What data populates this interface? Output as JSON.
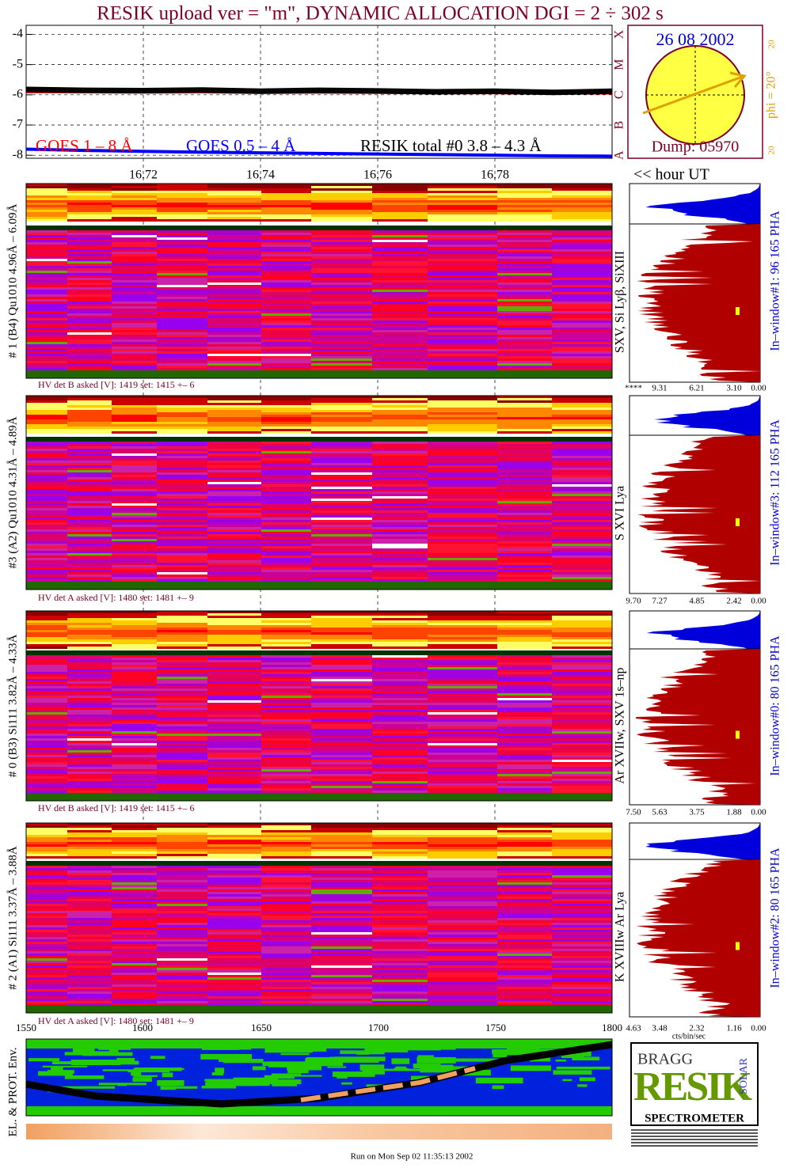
{
  "header": {
    "title": "RESIK upload ver = \"m\", DYNAMIC ALLOCATION  DGI =   2 ÷ 302 s",
    "footer": "Run on Mon Sep 02 11:35:13 2002"
  },
  "chart_data": {
    "type": "line",
    "x": [
      16.7,
      16.71,
      16.72,
      16.73,
      16.74,
      16.75,
      16.76,
      16.77,
      16.78,
      16.79,
      16.8
    ],
    "xlim": [
      16.7,
      16.8
    ],
    "xticks": [
      16.72,
      16.74,
      16.76,
      16.78
    ],
    "ylim": [
      -8.1,
      -3.7
    ],
    "yticks": [
      -4,
      -5,
      -6,
      -7,
      -8
    ],
    "grid": true,
    "x_label": "<< hour UT",
    "class_labels": [
      "X",
      "M",
      "C",
      "B",
      "A"
    ],
    "series": [
      {
        "name": "GOES 1 – 8 Å",
        "color": "#ff0000",
        "values": [
          -5.9,
          -5.9,
          -5.91,
          -5.9,
          -5.92,
          -5.91,
          -5.92,
          -5.93,
          -5.93,
          -5.94,
          -5.94
        ]
      },
      {
        "name": "GOES 0.5 – 4 Å",
        "color": "#0000ff",
        "values": [
          -7.8,
          -7.84,
          -7.87,
          -7.9,
          -7.92,
          -7.94,
          -7.96,
          -7.98,
          -8.0,
          -8.02,
          -8.03
        ]
      },
      {
        "name": "RESIK total #0  3.8 – 4.3 Å",
        "color": "#000000",
        "values": [
          -5.82,
          -5.85,
          -5.86,
          -5.84,
          -5.88,
          -5.85,
          -5.87,
          -5.9,
          -5.88,
          -5.92,
          -5.88
        ]
      }
    ]
  },
  "sun": {
    "date": "26 08 2002",
    "dump": "Dump: 05970",
    "phi": "phi = 20°",
    "tick_top": "20",
    "tick_bottom": "20"
  },
  "panels": [
    {
      "label": "# 1 (B4) Qu1010 4.96Å – 6.09Å",
      "lines": "SXV, Si Lyβ, SiXIII",
      "hv": "HV det B asked [V]:  1419 set:  1415 +–    6",
      "window": "In–window#1:   96 165 PHA",
      "hist_ticks": [
        "****",
        "9.31",
        "6.21",
        "3.10",
        "0.00"
      ]
    },
    {
      "label": "#3 (A2) Qu1010  4.31Å – 4.89Å",
      "lines": "S XVI Lya",
      "hv": "HV det A asked [V]:  1480 set:  1481 +–    9",
      "window": "In–window#3:  112 165 PHA",
      "hist_ticks": [
        "9.70",
        "7.27",
        "4.85",
        "2.42",
        "0.00"
      ]
    },
    {
      "label": "# 0 (B3) Si111  3.82Å – 4.33Å",
      "lines": "Ar XVIIw,  SXV 1s–np",
      "hv": "HV det B asked [V]:  1419 set:  1415 +–    6",
      "window": "In–window#0:   80 165 PHA",
      "hist_ticks": [
        "7.50",
        "5.63",
        "3.75",
        "1.88",
        "0.00"
      ]
    },
    {
      "label": "# 2 (A1) Si111  3.37Å – 3.88Å",
      "lines": "K XVIIIw  Ar Lya",
      "hv": "HV det A asked [V]:  1480 set:  1481 +–    9",
      "window": "In–window#2:   80 165 PHA",
      "hist_ticks": [
        "4.63",
        "3.48",
        "2.32",
        "1.16",
        "0.00"
      ]
    }
  ],
  "channel_ticks": [
    "1550",
    "1600",
    "1650",
    "1700",
    "1750",
    "1800"
  ],
  "hist_unit": "cts/bin/sec",
  "env_label": "EL. & PROT. Env.",
  "logo": {
    "top": "BRAGG",
    "main": "RESIK",
    "side": "SOLAR",
    "bottom": "SPECTROMETER"
  }
}
